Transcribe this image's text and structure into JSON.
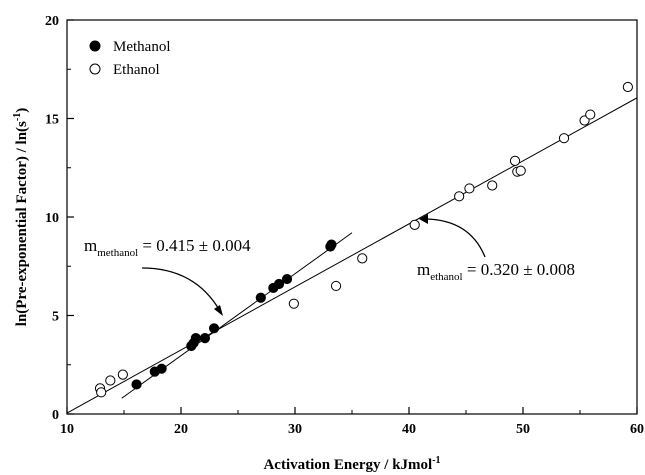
{
  "chart_data": {
    "type": "scatter",
    "xlabel": "Activation Energy / kJmol",
    "xlabel_sup": "-1",
    "ylabel": "ln(Pre-exponential Factor) / ln(s",
    "ylabel_sup": "-1",
    "ylabel_end": ")",
    "xlim": [
      10,
      60
    ],
    "ylim": [
      0,
      20
    ],
    "xticks": [
      10,
      20,
      30,
      40,
      50,
      60
    ],
    "xtick_labels": [
      "10",
      "20",
      "30",
      "40",
      "50",
      "60"
    ],
    "yticks": [
      0,
      5,
      10,
      15,
      20
    ],
    "ytick_labels": [
      "0",
      "5",
      "10",
      "15",
      "20"
    ],
    "grid": false,
    "legend": "top-left",
    "series": [
      {
        "name": "Methanol",
        "marker": "filled-circle",
        "color": "#000000",
        "x": [
          16.1,
          17.7,
          18.3,
          20.9,
          21.1,
          21.3,
          22.1,
          22.9,
          27.0,
          28.1,
          28.6,
          29.3,
          33.1,
          33.2
        ],
        "y": [
          1.5,
          2.15,
          2.3,
          3.45,
          3.6,
          3.85,
          3.85,
          4.35,
          5.9,
          6.4,
          6.6,
          6.85,
          8.5,
          8.6
        ],
        "fit": {
          "slope": 0.415,
          "x0": 14.8,
          "y0": 0.8,
          "x1": 35.0,
          "y1": 9.2
        }
      },
      {
        "name": "Ethanol",
        "marker": "open-circle",
        "color": "#000000",
        "x": [
          12.9,
          13.0,
          13.8,
          14.9,
          29.9,
          33.6,
          35.9,
          40.5,
          44.4,
          45.3,
          47.3,
          49.3,
          49.5,
          49.8,
          53.6,
          55.4,
          55.9,
          59.2
        ],
        "y": [
          1.3,
          1.1,
          1.7,
          2.0,
          5.6,
          6.5,
          7.9,
          9.6,
          11.05,
          11.45,
          11.6,
          12.85,
          12.3,
          12.35,
          14.0,
          14.9,
          15.2,
          16.6
        ],
        "fit": {
          "slope": 0.32,
          "x0": 10.0,
          "y0": 0.05,
          "x1": 60.0,
          "y1": 16.05
        }
      }
    ],
    "annotations": [
      {
        "main": "m",
        "sub": "methanol",
        "rest": " = 0.415 ± 0.004"
      },
      {
        "main": "m",
        "sub": "ethanol",
        "rest": " = 0.320 ± 0.008"
      }
    ]
  }
}
